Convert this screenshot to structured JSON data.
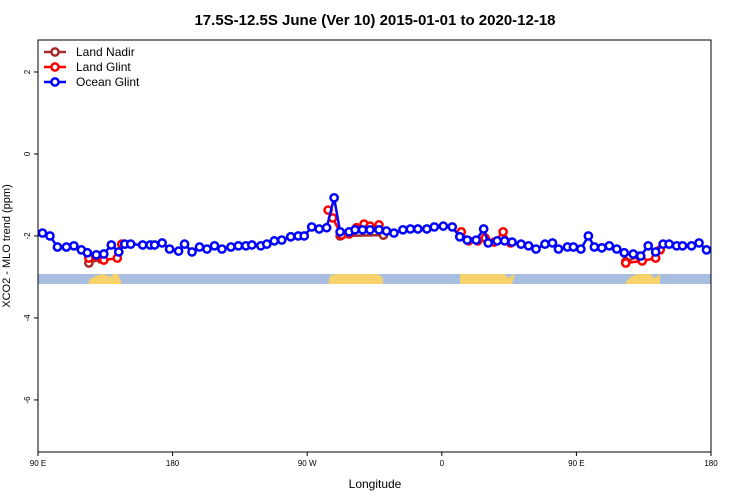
{
  "chart_data": {
    "type": "line",
    "title": "17.5S-12.5S June (Ver 10)   2015-01-01 to 2020-12-18",
    "x_label": "Longitude",
    "y_label": "XCO2 - MLO trend (ppm)",
    "xlim": [
      90,
      540
    ],
    "ylim": [
      -7.27,
      2.78
    ],
    "xticks": [
      {
        "value": 90,
        "label": "90 E"
      },
      {
        "value": 180,
        "label": "180"
      },
      {
        "value": 270,
        "label": "90 W"
      },
      {
        "value": 360,
        "label": "0"
      },
      {
        "value": 450,
        "label": "90 E"
      },
      {
        "value": 540,
        "label": "180"
      }
    ],
    "yticks": [
      2,
      0,
      -2,
      -4,
      -6
    ],
    "legend": "topleft",
    "series": [
      {
        "name": "Land Nadir",
        "color": "#a52a2a",
        "x": [
          124,
          132,
          200,
          292,
          321,
          400,
          483,
          492
        ],
        "values": [
          -2.66,
          -2.56,
          null,
          -2.0,
          -1.98,
          null,
          -2.63,
          -2.49
        ]
      },
      {
        "name": "Land Glint",
        "color": "#ff0000",
        "x": [
          124,
          134,
          143,
          146,
          200,
          284,
          287,
          293,
          298,
          303,
          308,
          312,
          318,
          340,
          373,
          378,
          384,
          389,
          395,
          401,
          406,
          450,
          483,
          494,
          503,
          506
        ],
        "values": [
          -2.54,
          -2.59,
          -2.54,
          -2.2,
          null,
          -1.37,
          -1.56,
          -1.98,
          -1.95,
          -1.8,
          -1.71,
          -1.76,
          -1.73,
          null,
          -1.9,
          -2.12,
          -2.12,
          -2.05,
          -2.15,
          -1.9,
          -2.17,
          null,
          -2.66,
          -2.61,
          -2.54,
          -2.34
        ]
      },
      {
        "name": "Ocean Glint",
        "color": "#0000ff",
        "x": [
          93,
          98,
          103,
          109,
          114,
          119,
          123,
          129,
          134,
          139,
          144,
          148,
          152,
          160,
          165,
          168,
          173,
          178,
          184,
          188,
          193,
          198,
          203,
          208,
          213,
          219,
          224,
          229,
          233,
          239,
          243,
          248,
          253,
          259,
          264,
          268,
          273,
          278,
          283,
          288,
          292,
          298,
          302,
          307,
          312,
          318,
          323,
          328,
          334,
          339,
          344,
          350,
          355,
          361,
          367,
          372,
          377,
          383,
          388,
          391,
          397,
          402,
          407,
          413,
          418,
          423,
          429,
          434,
          438,
          444,
          448,
          453,
          458,
          462,
          467,
          472,
          477,
          482,
          488,
          493,
          498,
          503,
          508,
          512,
          517,
          521,
          527,
          532,
          537
        ],
        "values": [
          -1.93,
          -2.0,
          -2.27,
          -2.27,
          -2.24,
          -2.34,
          -2.41,
          -2.46,
          -2.44,
          -2.22,
          -2.39,
          -2.2,
          -2.2,
          -2.22,
          -2.22,
          -2.22,
          -2.17,
          -2.32,
          -2.37,
          -2.2,
          -2.39,
          -2.27,
          -2.32,
          -2.24,
          -2.32,
          -2.27,
          -2.24,
          -2.24,
          -2.22,
          -2.24,
          -2.2,
          -2.12,
          -2.1,
          -2.02,
          -2.0,
          -2.0,
          -1.78,
          -1.83,
          -1.8,
          -1.07,
          -1.9,
          -1.9,
          -1.85,
          -1.85,
          -1.85,
          -1.85,
          -1.88,
          -1.93,
          -1.85,
          -1.83,
          -1.83,
          -1.83,
          -1.78,
          -1.76,
          -1.78,
          -2.02,
          -2.1,
          -2.1,
          -1.83,
          -2.17,
          -2.12,
          -2.12,
          -2.15,
          -2.2,
          -2.24,
          -2.32,
          -2.2,
          -2.17,
          -2.32,
          -2.27,
          -2.27,
          -2.32,
          -2.0,
          -2.27,
          -2.29,
          -2.24,
          -2.32,
          -2.41,
          -2.44,
          -2.49,
          -2.24,
          -2.39,
          -2.2,
          -2.2,
          -2.24,
          -2.24,
          -2.24,
          -2.17,
          -2.34
        ]
      }
    ]
  }
}
